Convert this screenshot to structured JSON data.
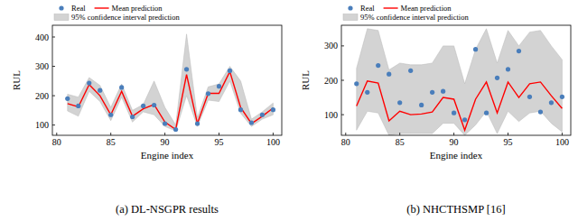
{
  "chart_data": [
    {
      "type": "line",
      "title": "(a) DL-NSGPR results",
      "x_label": "Engine index",
      "y_label": "RUL",
      "x": [
        81,
        82,
        83,
        84,
        85,
        86,
        87,
        88,
        89,
        90,
        91,
        92,
        93,
        94,
        95,
        96,
        97,
        98,
        99,
        100
      ],
      "xlim": [
        79.6,
        100.8
      ],
      "xticks": [
        80,
        85,
        90,
        95,
        100
      ],
      "ylim": [
        65,
        440
      ],
      "yticks": [
        100,
        200,
        300,
        400
      ],
      "grid": false,
      "legend": "top",
      "series": [
        {
          "name": "Real",
          "type": "scatter",
          "marker": "circle",
          "color": "#4a7ebb",
          "values": [
            190,
            165,
            243,
            218,
            135,
            228,
            128,
            165,
            168,
            105,
            85,
            290,
            105,
            207,
            232,
            285,
            152,
            108,
            135,
            152
          ]
        },
        {
          "name": "Mean prediction",
          "type": "line",
          "line_style": "solid",
          "color": "#ff0000",
          "values": [
            173,
            162,
            238,
            200,
            135,
            215,
            130,
            155,
            170,
            110,
            85,
            272,
            105,
            208,
            208,
            282,
            160,
            105,
            130,
            158
          ]
        },
        {
          "name": "95% confidence interval prediction",
          "type": "area",
          "color": "#d3d3d3",
          "lower": [
            148,
            130,
            215,
            180,
            115,
            195,
            110,
            145,
            135,
            95,
            80,
            200,
            95,
            185,
            180,
            250,
            140,
            95,
            120,
            135
          ],
          "upper": [
            205,
            195,
            262,
            235,
            160,
            240,
            150,
            170,
            250,
            160,
            100,
            410,
            125,
            230,
            240,
            300,
            250,
            120,
            145,
            175
          ]
        }
      ]
    },
    {
      "type": "line",
      "title": "(b) NHCTHSMP [16]",
      "x_label": "Engine index",
      "y_label": "RUL",
      "x": [
        81,
        82,
        83,
        84,
        85,
        86,
        87,
        88,
        89,
        90,
        91,
        92,
        93,
        94,
        95,
        96,
        97,
        98,
        99,
        100
      ],
      "xlim": [
        79.6,
        100.8
      ],
      "xticks": [
        80,
        85,
        90,
        95,
        100
      ],
      "ylim": [
        40,
        360
      ],
      "yticks": [
        100,
        200,
        300
      ],
      "grid": false,
      "legend": "top",
      "series": [
        {
          "name": "Real",
          "type": "scatter",
          "marker": "circle",
          "color": "#4a7ebb",
          "values": [
            190,
            165,
            243,
            218,
            135,
            228,
            128,
            165,
            168,
            105,
            85,
            290,
            105,
            207,
            232,
            285,
            152,
            108,
            135,
            152
          ]
        },
        {
          "name": "Mean prediction",
          "type": "line",
          "line_style": "solid",
          "color": "#ff0000",
          "values": [
            125,
            198,
            192,
            82,
            110,
            100,
            102,
            108,
            150,
            145,
            55,
            145,
            195,
            105,
            195,
            150,
            190,
            195,
            155,
            118
          ]
        },
        {
          "name": "95% confidence interval prediction",
          "type": "area",
          "color": "#d3d3d3",
          "lower": [
            55,
            110,
            105,
            40,
            45,
            45,
            45,
            45,
            75,
            75,
            40,
            70,
            110,
            45,
            110,
            80,
            105,
            110,
            75,
            50
          ],
          "upper": [
            235,
            350,
            345,
            230,
            250,
            245,
            245,
            250,
            300,
            300,
            190,
            290,
            350,
            250,
            345,
            300,
            340,
            345,
            300,
            260
          ]
        }
      ]
    }
  ]
}
